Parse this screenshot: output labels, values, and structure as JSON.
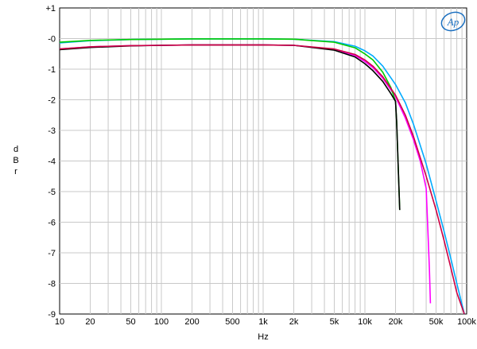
{
  "chart_data": {
    "type": "line",
    "title": "",
    "xlabel": "Hz",
    "ylabel": "dBr",
    "ylabel_chars": [
      "d",
      "B",
      "r"
    ],
    "xscale": "log",
    "xlim": [
      10,
      100000
    ],
    "ylim": [
      -9,
      1
    ],
    "grid": true,
    "x_ticks": [
      {
        "v": 10,
        "label": "10"
      },
      {
        "v": 20,
        "label": "20"
      },
      {
        "v": 50,
        "label": "50"
      },
      {
        "v": 100,
        "label": "100"
      },
      {
        "v": 200,
        "label": "200"
      },
      {
        "v": 500,
        "label": "500"
      },
      {
        "v": 1000,
        "label": "1k"
      },
      {
        "v": 2000,
        "label": "2k"
      },
      {
        "v": 5000,
        "label": "5k"
      },
      {
        "v": 10000,
        "label": "10k"
      },
      {
        "v": 20000,
        "label": "20k"
      },
      {
        "v": 50000,
        "label": "50k"
      },
      {
        "v": 100000,
        "label": "100k"
      }
    ],
    "y_ticks": [
      {
        "v": 1,
        "label": "+1"
      },
      {
        "v": 0,
        "label": "-0"
      },
      {
        "v": -1,
        "label": "-1"
      },
      {
        "v": -2,
        "label": "-2"
      },
      {
        "v": -3,
        "label": "-3"
      },
      {
        "v": -4,
        "label": "-4"
      },
      {
        "v": -5,
        "label": "-5"
      },
      {
        "v": -6,
        "label": "-6"
      },
      {
        "v": -7,
        "label": "-7"
      },
      {
        "v": -8,
        "label": "-8"
      },
      {
        "v": -9,
        "label": "-9"
      }
    ],
    "series": [
      {
        "color": "#00aaff",
        "points": [
          [
            10,
            -0.14
          ],
          [
            20,
            -0.07
          ],
          [
            50,
            -0.03
          ],
          [
            100,
            -0.02
          ],
          [
            200,
            -0.01
          ],
          [
            500,
            -0.01
          ],
          [
            1000,
            -0.01
          ],
          [
            2000,
            -0.02
          ],
          [
            5000,
            -0.1
          ],
          [
            8000,
            -0.25
          ],
          [
            10000,
            -0.4
          ],
          [
            12000,
            -0.57
          ],
          [
            15000,
            -0.9
          ],
          [
            20000,
            -1.5
          ],
          [
            25000,
            -2.1
          ],
          [
            30000,
            -2.8
          ],
          [
            40000,
            -4.1
          ],
          [
            50000,
            -5.3
          ],
          [
            60000,
            -6.3
          ],
          [
            70000,
            -7.2
          ],
          [
            80000,
            -8.0
          ],
          [
            95000,
            -9.0
          ]
        ]
      },
      {
        "color": "#ff00ff",
        "points": [
          [
            10,
            -0.34
          ],
          [
            20,
            -0.27
          ],
          [
            50,
            -0.23
          ],
          [
            100,
            -0.22
          ],
          [
            200,
            -0.21
          ],
          [
            500,
            -0.21
          ],
          [
            1000,
            -0.21
          ],
          [
            2000,
            -0.22
          ],
          [
            5000,
            -0.35
          ],
          [
            8000,
            -0.55
          ],
          [
            10000,
            -0.75
          ],
          [
            12000,
            -0.95
          ],
          [
            15000,
            -1.3
          ],
          [
            20000,
            -1.9
          ],
          [
            25000,
            -2.6
          ],
          [
            30000,
            -3.3
          ],
          [
            35000,
            -4.0
          ],
          [
            38000,
            -4.55
          ],
          [
            40000,
            -4.9
          ],
          [
            43000,
            -7.5
          ],
          [
            44000,
            -8.65
          ]
        ]
      },
      {
        "color": "#00cc00",
        "points": [
          [
            10,
            -0.12
          ],
          [
            20,
            -0.06
          ],
          [
            50,
            -0.03
          ],
          [
            100,
            -0.02
          ],
          [
            200,
            -0.01
          ],
          [
            500,
            -0.01
          ],
          [
            1000,
            -0.01
          ],
          [
            2000,
            -0.02
          ],
          [
            5000,
            -0.12
          ],
          [
            8000,
            -0.3
          ],
          [
            10000,
            -0.5
          ],
          [
            12000,
            -0.7
          ],
          [
            15000,
            -1.1
          ],
          [
            18000,
            -1.6
          ],
          [
            20000,
            -2.05
          ],
          [
            20500,
            -2.7
          ],
          [
            22000,
            -5.6
          ]
        ]
      },
      {
        "color": "#000000",
        "points": [
          [
            10,
            -0.36
          ],
          [
            20,
            -0.29
          ],
          [
            50,
            -0.24
          ],
          [
            100,
            -0.22
          ],
          [
            200,
            -0.21
          ],
          [
            500,
            -0.21
          ],
          [
            1000,
            -0.21
          ],
          [
            2000,
            -0.22
          ],
          [
            5000,
            -0.38
          ],
          [
            8000,
            -0.6
          ],
          [
            10000,
            -0.82
          ],
          [
            12000,
            -1.05
          ],
          [
            15000,
            -1.4
          ],
          [
            18000,
            -1.8
          ],
          [
            20000,
            -2.05
          ],
          [
            20500,
            -2.7
          ],
          [
            22000,
            -5.6
          ]
        ]
      },
      {
        "color": "#cc0044",
        "points": [
          [
            10,
            -0.34
          ],
          [
            20,
            -0.27
          ],
          [
            50,
            -0.23
          ],
          [
            100,
            -0.22
          ],
          [
            200,
            -0.21
          ],
          [
            500,
            -0.21
          ],
          [
            1000,
            -0.21
          ],
          [
            2000,
            -0.22
          ],
          [
            5000,
            -0.34
          ],
          [
            8000,
            -0.52
          ],
          [
            10000,
            -0.7
          ],
          [
            12000,
            -0.9
          ],
          [
            15000,
            -1.25
          ],
          [
            20000,
            -1.85
          ],
          [
            25000,
            -2.5
          ],
          [
            30000,
            -3.2
          ],
          [
            40000,
            -4.5
          ],
          [
            50000,
            -5.6
          ],
          [
            60000,
            -6.6
          ],
          [
            70000,
            -7.5
          ],
          [
            80000,
            -8.3
          ],
          [
            95000,
            -9.0
          ]
        ]
      }
    ]
  },
  "logo": {
    "text": "Ap",
    "color": "#1a6fc0"
  }
}
